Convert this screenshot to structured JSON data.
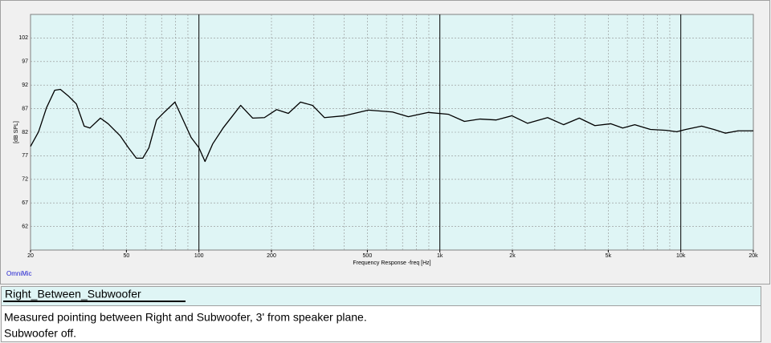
{
  "chart_data": {
    "type": "line",
    "xlabel": "Frequency Response -freq [Hz]",
    "ylabel": "[dB SPL]",
    "annotation": "OmniMic",
    "xscale": "log",
    "grid": true,
    "xlim": [
      20,
      20000
    ],
    "ylim": [
      57,
      107
    ],
    "xticks": [
      20,
      50,
      100,
      200,
      500,
      {
        "value": 1000,
        "label": "1k"
      },
      {
        "value": 2000,
        "label": "2k"
      },
      {
        "value": 5000,
        "label": "5k"
      },
      {
        "value": 10000,
        "label": "10k"
      },
      {
        "value": 20000,
        "label": "20k"
      }
    ],
    "x_major_grid": [
      100,
      1000,
      10000
    ],
    "x_minor_grid": [
      30,
      40,
      50,
      60,
      70,
      80,
      90,
      200,
      300,
      400,
      500,
      600,
      700,
      800,
      900,
      2000,
      3000,
      4000,
      5000,
      6000,
      7000,
      8000,
      9000
    ],
    "yticks": [
      62,
      67,
      72,
      77,
      82,
      87,
      92,
      97,
      102
    ],
    "series": [
      {
        "color": "#000000",
        "x": [
          20,
          21.6,
          23.3,
          25.2,
          26.6,
          28.7,
          31,
          33.4,
          35.3,
          39,
          42,
          47.2,
          51,
          55,
          58.5,
          62,
          66.7,
          72,
          79.5,
          86,
          92.8,
          100,
          106,
          114,
          126,
          138,
          149,
          167,
          187,
          210,
          235,
          264,
          296,
          332,
          402,
          505,
          636,
          740,
          896,
          1086,
          1265,
          1470,
          1710,
          1990,
          2310,
          2800,
          3260,
          3790,
          4400,
          5120,
          5740,
          6440,
          7480,
          8700,
          9620,
          10500,
          12200,
          13700,
          15300,
          17300,
          20000
        ],
        "values": [
          79.0,
          82.1,
          87.2,
          90.9,
          91.1,
          89.7,
          88.0,
          83.3,
          82.9,
          85.0,
          83.8,
          81.2,
          78.7,
          76.5,
          76.5,
          78.7,
          84.6,
          86.3,
          88.4,
          84.6,
          80.9,
          78.7,
          75.8,
          79.5,
          82.9,
          85.5,
          87.7,
          85.0,
          85.1,
          86.8,
          86.0,
          88.4,
          87.7,
          85.1,
          85.5,
          86.7,
          86.3,
          85.3,
          86.2,
          85.8,
          84.3,
          84.8,
          84.6,
          85.5,
          83.9,
          85.1,
          83.6,
          85.0,
          83.4,
          83.8,
          82.9,
          83.6,
          82.6,
          82.4,
          82.1,
          82.6,
          83.3,
          82.6,
          81.8,
          82.3,
          82.3
        ]
      }
    ]
  },
  "panel": {
    "name": "Right_Between_Subwoofer",
    "description": [
      "Measured pointing between Right and Subwoofer, 3' from speaker plane.",
      "Subwoofer off."
    ]
  }
}
